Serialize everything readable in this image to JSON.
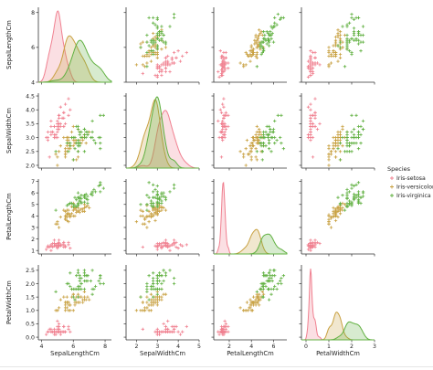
{
  "chart_data": {
    "type": "pairplot",
    "variables": [
      "SepalLengthCm",
      "SepalWidthCm",
      "PetalLengthCm",
      "PetalWidthCm"
    ],
    "ranges": [
      [
        4,
        8.3
      ],
      [
        1.9,
        4.6
      ],
      [
        0.7,
        7.2
      ],
      [
        -0.1,
        2.7
      ]
    ],
    "ticks": [
      [
        4,
        6,
        8
      ],
      [
        2.0,
        2.5,
        3.0,
        3.5,
        4.0,
        4.5
      ],
      [
        1,
        2,
        3,
        4,
        5,
        6,
        7
      ],
      [
        0.0,
        0.5,
        1.0,
        1.5,
        2.0,
        2.5
      ]
    ],
    "tick_labels": [
      [
        "4",
        "6",
        "8"
      ],
      [
        "2.0",
        "2.5",
        "3.0",
        "3.5",
        "4.0",
        "4.5"
      ],
      [
        "1",
        "2",
        "3",
        "4",
        "5",
        "6",
        "7"
      ],
      [
        "0.0",
        "0.5",
        "1.0",
        "1.5",
        "2.0",
        "2.5"
      ]
    ],
    "bottom_ticks": [
      [
        4,
        6,
        8
      ],
      [
        2,
        3,
        4,
        5
      ],
      [
        2,
        4,
        6
      ],
      [
        0,
        1,
        2,
        3
      ]
    ],
    "bottom_tick_labels": [
      [
        "4",
        "6",
        "8"
      ],
      [
        "2",
        "3",
        "4",
        "5"
      ],
      [
        "2",
        "4",
        "6"
      ],
      [
        "0",
        "1",
        "2",
        "3"
      ]
    ],
    "bottom_ranges": [
      [
        3.8,
        8.4
      ],
      [
        1.5,
        5.0
      ],
      [
        0.6,
        7.2
      ],
      [
        -0.2,
        3.0
      ]
    ],
    "diagonal": "kde",
    "offdiagonal": "scatter",
    "marker": "+",
    "legend": {
      "title": "Species",
      "placement": "right"
    },
    "series": [
      {
        "name": "Iris-setosa",
        "color": "#f08090",
        "x": [
          [
            5.1,
            3.5,
            1.4,
            0.2
          ],
          [
            4.9,
            3.0,
            1.4,
            0.2
          ],
          [
            4.7,
            3.2,
            1.3,
            0.2
          ],
          [
            4.6,
            3.1,
            1.5,
            0.2
          ],
          [
            5.0,
            3.6,
            1.4,
            0.2
          ],
          [
            5.4,
            3.9,
            1.7,
            0.4
          ],
          [
            4.6,
            3.4,
            1.4,
            0.3
          ],
          [
            5.0,
            3.4,
            1.5,
            0.2
          ],
          [
            4.4,
            2.9,
            1.4,
            0.2
          ],
          [
            4.9,
            3.1,
            1.5,
            0.1
          ],
          [
            5.4,
            3.7,
            1.5,
            0.2
          ],
          [
            4.8,
            3.4,
            1.6,
            0.2
          ],
          [
            4.8,
            3.0,
            1.4,
            0.1
          ],
          [
            4.3,
            3.0,
            1.1,
            0.1
          ],
          [
            5.8,
            4.0,
            1.2,
            0.2
          ],
          [
            5.7,
            4.4,
            1.5,
            0.4
          ],
          [
            5.4,
            3.9,
            1.3,
            0.4
          ],
          [
            5.1,
            3.5,
            1.4,
            0.3
          ],
          [
            5.7,
            3.8,
            1.7,
            0.3
          ],
          [
            5.1,
            3.8,
            1.5,
            0.3
          ],
          [
            5.4,
            3.4,
            1.7,
            0.2
          ],
          [
            5.1,
            3.7,
            1.5,
            0.4
          ],
          [
            4.6,
            3.6,
            1.0,
            0.2
          ],
          [
            5.1,
            3.3,
            1.7,
            0.5
          ],
          [
            4.8,
            3.4,
            1.9,
            0.2
          ],
          [
            5.0,
            3.0,
            1.6,
            0.2
          ],
          [
            5.0,
            3.4,
            1.6,
            0.4
          ],
          [
            5.2,
            3.5,
            1.5,
            0.2
          ],
          [
            5.2,
            3.4,
            1.4,
            0.2
          ],
          [
            4.7,
            3.2,
            1.6,
            0.2
          ],
          [
            4.8,
            3.1,
            1.6,
            0.2
          ],
          [
            5.4,
            3.4,
            1.5,
            0.4
          ],
          [
            5.2,
            4.1,
            1.5,
            0.1
          ],
          [
            5.5,
            4.2,
            1.4,
            0.2
          ],
          [
            4.9,
            3.1,
            1.5,
            0.1
          ],
          [
            5.0,
            3.2,
            1.2,
            0.2
          ],
          [
            5.5,
            3.5,
            1.3,
            0.2
          ],
          [
            4.4,
            3.0,
            1.3,
            0.2
          ],
          [
            5.1,
            3.4,
            1.5,
            0.2
          ],
          [
            5.0,
            3.5,
            1.3,
            0.3
          ],
          [
            4.5,
            2.3,
            1.3,
            0.3
          ],
          [
            4.4,
            3.2,
            1.3,
            0.2
          ],
          [
            5.0,
            3.5,
            1.6,
            0.6
          ],
          [
            5.1,
            3.8,
            1.9,
            0.4
          ],
          [
            4.8,
            3.0,
            1.4,
            0.3
          ],
          [
            5.1,
            3.8,
            1.6,
            0.2
          ],
          [
            4.6,
            3.2,
            1.4,
            0.2
          ],
          [
            5.3,
            3.7,
            1.5,
            0.2
          ],
          [
            5.0,
            3.3,
            1.4,
            0.2
          ]
        ]
      },
      {
        "name": "Iris-versicolor",
        "color": "#c8a040",
        "x": [
          [
            7.0,
            3.2,
            4.7,
            1.4
          ],
          [
            6.4,
            3.2,
            4.5,
            1.5
          ],
          [
            6.9,
            3.1,
            4.9,
            1.5
          ],
          [
            5.5,
            2.3,
            4.0,
            1.3
          ],
          [
            6.5,
            2.8,
            4.6,
            1.5
          ],
          [
            5.7,
            2.8,
            4.5,
            1.3
          ],
          [
            6.3,
            3.3,
            4.7,
            1.6
          ],
          [
            4.9,
            2.4,
            3.3,
            1.0
          ],
          [
            6.6,
            2.9,
            4.6,
            1.3
          ],
          [
            5.2,
            2.7,
            3.9,
            1.4
          ],
          [
            5.0,
            2.0,
            3.5,
            1.0
          ],
          [
            5.9,
            3.0,
            4.2,
            1.5
          ],
          [
            6.0,
            2.2,
            4.0,
            1.0
          ],
          [
            6.1,
            2.9,
            4.7,
            1.4
          ],
          [
            5.6,
            2.9,
            3.6,
            1.3
          ],
          [
            6.7,
            3.1,
            4.4,
            1.4
          ],
          [
            5.6,
            3.0,
            4.5,
            1.5
          ],
          [
            5.8,
            2.7,
            4.1,
            1.0
          ],
          [
            6.2,
            2.2,
            4.5,
            1.5
          ],
          [
            5.6,
            2.5,
            3.9,
            1.1
          ],
          [
            5.9,
            3.2,
            4.8,
            1.8
          ],
          [
            6.1,
            2.8,
            4.0,
            1.3
          ],
          [
            6.3,
            2.5,
            4.9,
            1.5
          ],
          [
            6.1,
            2.8,
            4.7,
            1.2
          ],
          [
            6.4,
            2.9,
            4.3,
            1.3
          ],
          [
            6.6,
            3.0,
            4.4,
            1.4
          ],
          [
            6.8,
            2.8,
            4.8,
            1.4
          ],
          [
            6.7,
            3.0,
            5.0,
            1.7
          ],
          [
            6.0,
            2.9,
            4.5,
            1.5
          ],
          [
            5.7,
            2.6,
            3.5,
            1.0
          ],
          [
            5.5,
            2.4,
            3.8,
            1.1
          ],
          [
            5.5,
            2.4,
            3.7,
            1.0
          ],
          [
            5.8,
            2.7,
            3.9,
            1.2
          ],
          [
            6.0,
            2.7,
            5.1,
            1.6
          ],
          [
            5.4,
            3.0,
            4.5,
            1.5
          ],
          [
            6.0,
            3.4,
            4.5,
            1.6
          ],
          [
            6.7,
            3.1,
            4.7,
            1.5
          ],
          [
            6.3,
            2.3,
            4.4,
            1.3
          ],
          [
            5.6,
            3.0,
            4.1,
            1.3
          ],
          [
            5.5,
            2.5,
            4.0,
            1.3
          ],
          [
            5.5,
            2.6,
            4.4,
            1.2
          ],
          [
            6.1,
            3.0,
            4.6,
            1.4
          ],
          [
            5.8,
            2.6,
            4.0,
            1.2
          ],
          [
            5.0,
            2.3,
            3.3,
            1.0
          ],
          [
            5.6,
            2.7,
            4.2,
            1.3
          ],
          [
            5.7,
            3.0,
            4.2,
            1.2
          ],
          [
            5.7,
            2.9,
            4.2,
            1.3
          ],
          [
            6.2,
            2.9,
            4.3,
            1.3
          ],
          [
            5.1,
            2.5,
            3.0,
            1.1
          ],
          [
            5.7,
            2.8,
            4.1,
            1.3
          ]
        ]
      },
      {
        "name": "Iris-virginica",
        "color": "#60b040",
        "x": [
          [
            6.3,
            3.3,
            6.0,
            2.5
          ],
          [
            5.8,
            2.7,
            5.1,
            1.9
          ],
          [
            7.1,
            3.0,
            5.9,
            2.1
          ],
          [
            6.3,
            2.9,
            5.6,
            1.8
          ],
          [
            6.5,
            3.0,
            5.8,
            2.2
          ],
          [
            7.6,
            3.0,
            6.6,
            2.1
          ],
          [
            4.9,
            2.5,
            4.5,
            1.7
          ],
          [
            7.3,
            2.9,
            6.3,
            1.8
          ],
          [
            6.7,
            2.5,
            5.8,
            1.8
          ],
          [
            7.2,
            3.6,
            6.1,
            2.5
          ],
          [
            6.5,
            3.2,
            5.1,
            2.0
          ],
          [
            6.4,
            2.7,
            5.3,
            1.9
          ],
          [
            6.8,
            3.0,
            5.5,
            2.1
          ],
          [
            5.7,
            2.5,
            5.0,
            2.0
          ],
          [
            5.8,
            2.8,
            5.1,
            2.4
          ],
          [
            6.4,
            3.2,
            5.3,
            2.3
          ],
          [
            6.5,
            3.0,
            5.5,
            1.8
          ],
          [
            7.7,
            3.8,
            6.7,
            2.2
          ],
          [
            7.7,
            2.6,
            6.9,
            2.3
          ],
          [
            6.0,
            2.2,
            5.0,
            1.5
          ],
          [
            6.9,
            3.2,
            5.7,
            2.3
          ],
          [
            5.6,
            2.8,
            4.9,
            2.0
          ],
          [
            7.7,
            2.8,
            6.7,
            2.0
          ],
          [
            6.3,
            2.7,
            4.9,
            1.8
          ],
          [
            6.7,
            3.3,
            5.7,
            2.1
          ],
          [
            7.2,
            3.2,
            6.0,
            1.8
          ],
          [
            6.2,
            2.8,
            4.8,
            1.8
          ],
          [
            6.1,
            3.0,
            4.9,
            1.8
          ],
          [
            6.4,
            2.8,
            5.6,
            2.1
          ],
          [
            7.2,
            3.0,
            5.8,
            1.6
          ],
          [
            7.4,
            2.8,
            6.1,
            1.9
          ],
          [
            7.9,
            3.8,
            6.4,
            2.0
          ],
          [
            6.4,
            2.8,
            5.6,
            2.2
          ],
          [
            6.3,
            2.8,
            5.1,
            1.5
          ],
          [
            6.1,
            2.6,
            5.6,
            1.4
          ],
          [
            7.7,
            3.0,
            6.1,
            2.3
          ],
          [
            6.3,
            3.4,
            5.6,
            2.4
          ],
          [
            6.4,
            3.1,
            5.5,
            1.8
          ],
          [
            6.0,
            3.0,
            4.8,
            1.8
          ],
          [
            6.9,
            3.1,
            5.4,
            2.1
          ],
          [
            6.7,
            3.1,
            5.6,
            2.4
          ],
          [
            6.9,
            3.1,
            5.1,
            2.3
          ],
          [
            6.8,
            3.2,
            5.9,
            2.3
          ],
          [
            6.7,
            3.3,
            5.7,
            2.5
          ],
          [
            6.7,
            3.0,
            5.2,
            2.3
          ],
          [
            6.3,
            2.5,
            5.0,
            1.9
          ],
          [
            6.5,
            3.0,
            5.2,
            2.0
          ],
          [
            6.2,
            3.4,
            5.4,
            2.3
          ],
          [
            5.9,
            3.0,
            5.1,
            1.8
          ]
        ]
      }
    ]
  }
}
